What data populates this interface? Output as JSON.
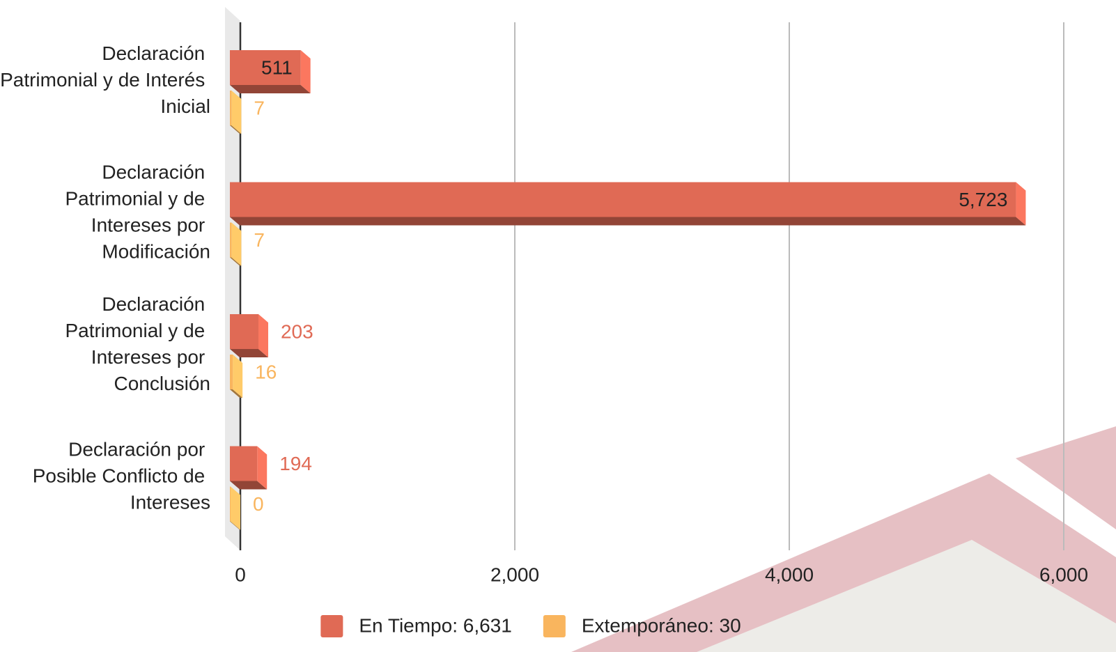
{
  "chart_data": {
    "type": "bar3d",
    "orientation": "horizontal",
    "categories": [
      "Declaración Patrimonial y de Interés Inicial",
      "Declaración Patrimonial y de Intereses por Modificación",
      "Declaración Patrimonial y de Intereses por Conclusión",
      "Declaración por Posible Conflicto de Intereses"
    ],
    "series": [
      {
        "name": "En Tiempo: 6,631",
        "color": "#e06a55",
        "values": [
          511,
          5723,
          203,
          194
        ],
        "value_labels": [
          "511",
          "5,723",
          "203",
          "194"
        ]
      },
      {
        "name": "Extemporáneo: 30",
        "color": "#f9b55e",
        "values": [
          7,
          7,
          16,
          0
        ]
      }
    ],
    "xlim": [
      0,
      6000
    ],
    "xticks": [
      0,
      {
        "value": 2000,
        "label": "2,000"
      },
      {
        "value": 4000,
        "label": "4,000"
      },
      {
        "value": 6000,
        "label": "6,000"
      }
    ],
    "grid": true,
    "legend": "bottom"
  }
}
